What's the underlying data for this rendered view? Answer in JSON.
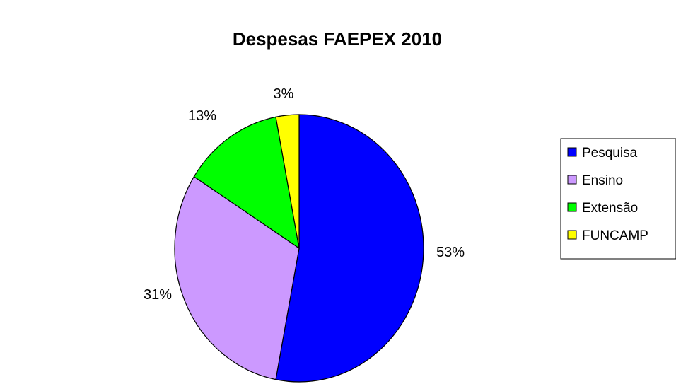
{
  "chart_data": {
    "type": "pie",
    "title": "Despesas FAEPEX 2010",
    "slices": [
      {
        "name": "Pesquisa",
        "value": 53,
        "label": "53%",
        "color": "#0000FF"
      },
      {
        "name": "Ensino",
        "value": 31,
        "label": "31%",
        "color": "#CC99FF"
      },
      {
        "name": "Extensão",
        "value": 13,
        "label": "13%",
        "color": "#00FF00"
      },
      {
        "name": "FUNCAMP",
        "value": 3,
        "label": "3%",
        "color": "#FFFF00"
      }
    ],
    "legend_placement": "right",
    "start": "top-clockwise"
  }
}
